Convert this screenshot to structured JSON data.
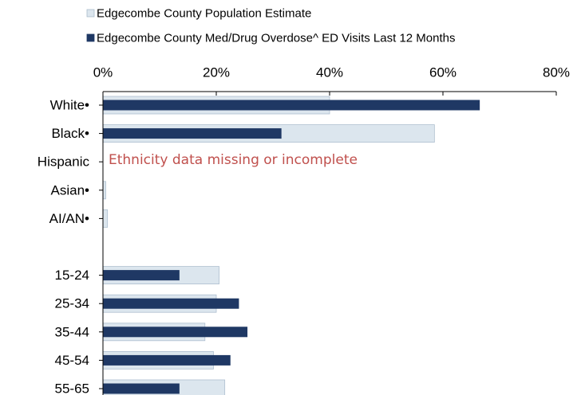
{
  "chart_data": {
    "type": "bar",
    "orientation": "horizontal",
    "title": "",
    "xlabel": "",
    "ylabel": "",
    "xlim": [
      0,
      80
    ],
    "x_ticks": [
      "0%",
      "20%",
      "40%",
      "60%",
      "80%"
    ],
    "x_tick_values": [
      0,
      20,
      40,
      60,
      80
    ],
    "x_axis_position": "top",
    "grid": false,
    "legend_position": "top-left",
    "categories": [
      "White•",
      "Black•",
      "Hispanic",
      "Asian•",
      "AI/AN•",
      "",
      "15-24",
      "25-34",
      "35-44",
      "45-54",
      "55-65"
    ],
    "series": [
      {
        "name": "Edgecombe County Population Estimate",
        "color": "#dce6ee",
        "values": [
          40,
          58.5,
          null,
          0.5,
          0.8,
          null,
          20.5,
          20,
          18,
          19.5,
          21.5
        ]
      },
      {
        "name": "Edgecombe County Med/Drug Overdose^ ED Visits Last 12 Months",
        "color": "#1f3864",
        "values": [
          66.5,
          31.5,
          null,
          0,
          0,
          null,
          13.5,
          24,
          25.5,
          22.5,
          13.5
        ]
      }
    ],
    "annotations": [
      {
        "text": "Ethnicity data missing or incomplete",
        "category": "Hispanic",
        "color": "#c0504d"
      }
    ]
  }
}
